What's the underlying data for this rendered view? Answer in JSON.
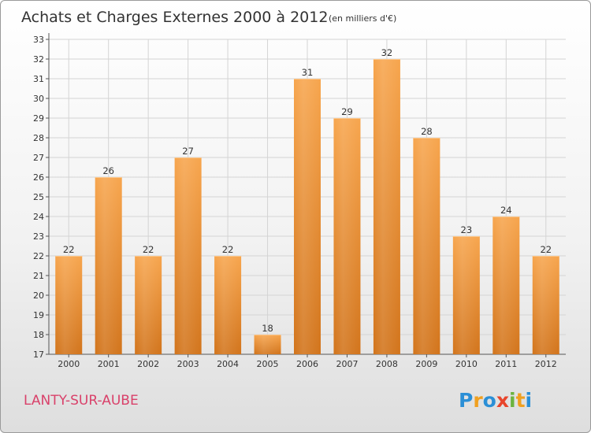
{
  "header": {
    "title": "Achats et Charges Externes 2000 à 2012",
    "unit": "(en milliers d'€)"
  },
  "footer": {
    "commune": "LANTY-SUR-AUBE",
    "logo": "Proxiti"
  },
  "colors": {
    "bar_light": "#f7a54d",
    "bar_dark": "#d2741b",
    "commune": "#d9416a"
  },
  "chart_data": {
    "type": "bar",
    "title": "Achats et Charges Externes 2000 à 2012",
    "subtitle": "(en milliers d'€)",
    "categories": [
      "2000",
      "2001",
      "2002",
      "2003",
      "2004",
      "2005",
      "2006",
      "2007",
      "2008",
      "2009",
      "2010",
      "2011",
      "2012"
    ],
    "values": [
      22,
      26,
      22,
      27,
      22,
      18,
      31,
      29,
      32,
      28,
      23,
      24,
      22
    ],
    "ylim": [
      17,
      33
    ],
    "yticks": [
      17,
      18,
      19,
      20,
      21,
      22,
      23,
      24,
      25,
      26,
      27,
      28,
      29,
      30,
      31,
      32,
      33
    ],
    "xlabel": "",
    "ylabel": "",
    "grid": true,
    "legend": "none"
  }
}
